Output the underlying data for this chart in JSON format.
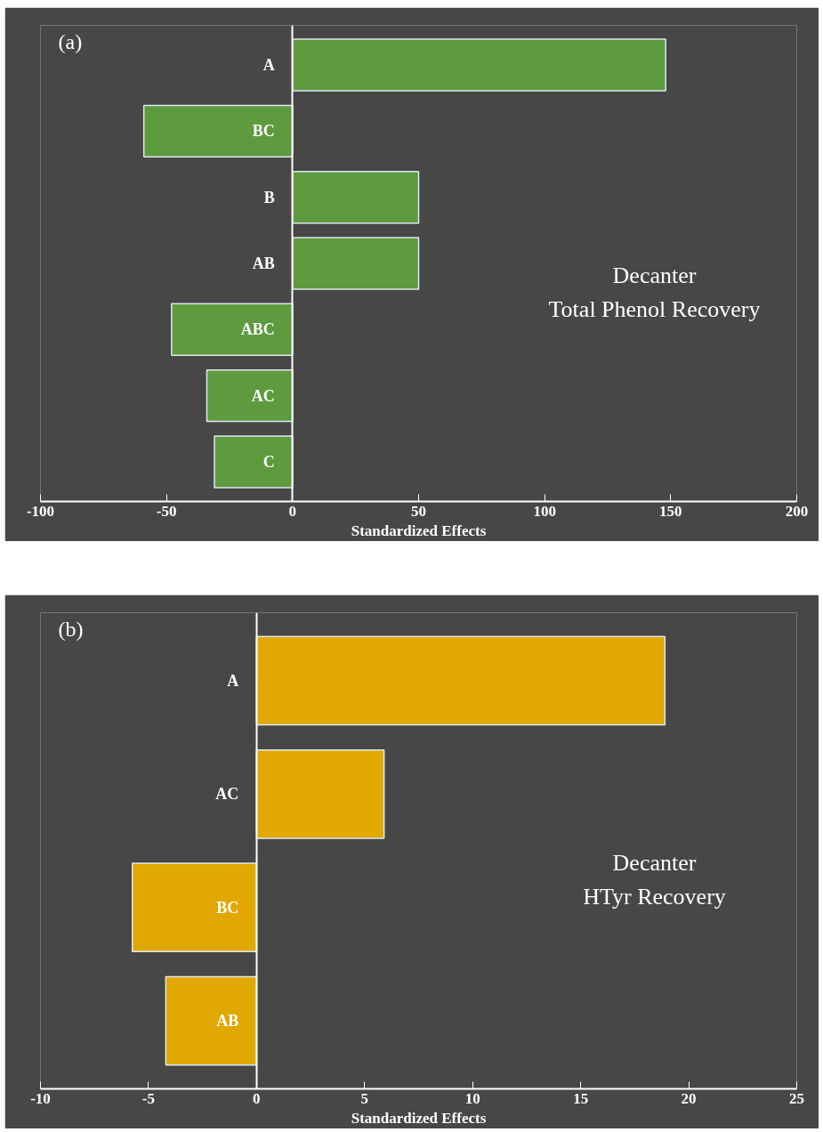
{
  "chart_data": [
    {
      "type": "bar",
      "orientation": "horizontal",
      "title": "(a)",
      "xlabel": "Standardized Effects",
      "categories": [
        "A",
        "BC",
        "B",
        "AB",
        "ABC",
        "AC",
        "C"
      ],
      "values": [
        148,
        -59,
        50,
        50,
        -48,
        -34,
        -31
      ],
      "color": "#5e9a3e",
      "xlim": [
        -100,
        200
      ],
      "xticks": [
        -100,
        -50,
        0,
        50,
        100,
        150,
        200
      ],
      "grid": false,
      "annotations": [
        "Decanter",
        "Total Phenol Recovery"
      ]
    },
    {
      "type": "bar",
      "orientation": "horizontal",
      "title": "(b)",
      "xlabel": "Standardized Effects",
      "categories": [
        "A",
        "AC",
        "BC",
        "AB"
      ],
      "values": [
        18.9,
        5.9,
        -5.75,
        -4.2
      ],
      "color": "#e0a800",
      "xlim": [
        -10,
        25
      ],
      "xticks": [
        -10,
        -5,
        0,
        5,
        10,
        15,
        20,
        25
      ],
      "grid": false,
      "annotations": [
        "Decanter",
        "HTyr Recovery"
      ]
    }
  ]
}
